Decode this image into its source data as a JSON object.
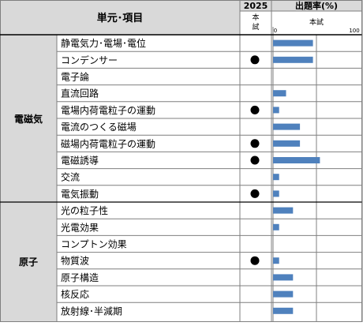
{
  "header": {
    "unit_item": "単元･項目",
    "year": "2025",
    "exam": "本試",
    "rate_title": "出題率(%)",
    "rate_subtitle": "本試",
    "axis_min": "0",
    "axis_max": "100"
  },
  "sections": [
    {
      "name": "電磁気",
      "items": [
        {
          "label": "静電気力･電場･電位",
          "dot": false,
          "rate": 46
        },
        {
          "label": "コンデンサー",
          "dot": true,
          "rate": 46
        },
        {
          "label": "電子論",
          "dot": false,
          "rate": 0
        },
        {
          "label": "直流回路",
          "dot": false,
          "rate": 15
        },
        {
          "label": "電場内荷電粒子の運動",
          "dot": true,
          "rate": 7
        },
        {
          "label": "電流のつくる磁場",
          "dot": false,
          "rate": 31
        },
        {
          "label": "磁場内荷電粒子の運動",
          "dot": true,
          "rate": 31
        },
        {
          "label": "電磁誘導",
          "dot": true,
          "rate": 54
        },
        {
          "label": "交流",
          "dot": false,
          "rate": 7
        },
        {
          "label": "電気振動",
          "dot": true,
          "rate": 7
        }
      ]
    },
    {
      "name": "原子",
      "items": [
        {
          "label": "光の粒子性",
          "dot": false,
          "rate": 23
        },
        {
          "label": "光電効果",
          "dot": false,
          "rate": 7
        },
        {
          "label": "コンプトン効果",
          "dot": false,
          "rate": 0
        },
        {
          "label": "物質波",
          "dot": true,
          "rate": 7
        },
        {
          "label": "原子構造",
          "dot": false,
          "rate": 23
        },
        {
          "label": "核反応",
          "dot": false,
          "rate": 23
        },
        {
          "label": "放射線･半減期",
          "dot": false,
          "rate": 23
        }
      ]
    }
  ],
  "colors": {
    "header_bg": "#d9d9d9",
    "section_bg": "#d9d9d9",
    "bar": "#4f81bd",
    "grid": "#808080",
    "border": "#7f7f7f"
  }
}
